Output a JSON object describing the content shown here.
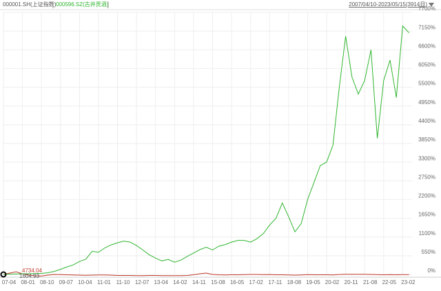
{
  "chart_data": {
    "type": "line",
    "date_range": "2007/04/10-2023/05/15(3914日)",
    "annotations": [
      "4734.04",
      "1604.93"
    ],
    "x": [
      2007.25,
      2007.5,
      2007.75,
      2008,
      2008.25,
      2008.5,
      2008.75,
      2009,
      2009.25,
      2009.5,
      2009.75,
      2010,
      2010.25,
      2010.5,
      2010.75,
      2011,
      2011.25,
      2011.5,
      2011.75,
      2012,
      2012.25,
      2012.5,
      2012.75,
      2013,
      2013.25,
      2013.5,
      2013.75,
      2014,
      2014.25,
      2014.5,
      2014.75,
      2015,
      2015.25,
      2015.5,
      2015.75,
      2016,
      2016.25,
      2016.5,
      2016.75,
      2017,
      2017.25,
      2017.5,
      2017.75,
      2018,
      2018.25,
      2018.5,
      2018.75,
      2019,
      2019.25,
      2019.5,
      2019.75,
      2020,
      2020.25,
      2020.5,
      2020.75,
      2021,
      2021.25,
      2021.5,
      2021.75,
      2022,
      2022.25,
      2022.5,
      2022.75,
      2023,
      2023.25
    ],
    "xlim": [
      2007.25,
      2023.37
    ],
    "xticks": [
      {
        "value": 2007.25,
        "label": "07-04"
      },
      {
        "value": 2008,
        "label": "08-01"
      },
      {
        "value": 2008.75,
        "label": "08-10"
      },
      {
        "value": 2009.5,
        "label": "09-07"
      },
      {
        "value": 2010.25,
        "label": "10-04"
      },
      {
        "value": 2011,
        "label": "11-01"
      },
      {
        "value": 2011.75,
        "label": "11-10"
      },
      {
        "value": 2012.5,
        "label": "12-07"
      },
      {
        "value": 2013.25,
        "label": "13-04"
      },
      {
        "value": 2014,
        "label": "14-02"
      },
      {
        "value": 2014.75,
        "label": "14-11"
      },
      {
        "value": 2015.5,
        "label": "15-08"
      },
      {
        "value": 2016.25,
        "label": "16-05"
      },
      {
        "value": 2017,
        "label": "17-02"
      },
      {
        "value": 2017.75,
        "label": "17-11"
      },
      {
        "value": 2018.5,
        "label": "18-08"
      },
      {
        "value": 2019.25,
        "label": "19-05"
      },
      {
        "value": 2020,
        "label": "20-02"
      },
      {
        "value": 2020.75,
        "label": "20-11"
      },
      {
        "value": 2021.5,
        "label": "21-08"
      },
      {
        "value": 2022.25,
        "label": "22-05"
      },
      {
        "value": 2023,
        "label": "23-02"
      }
    ],
    "ylim": [
      0,
      7700
    ],
    "yticks": [
      {
        "value": 0,
        "label": "0%"
      },
      {
        "value": 550,
        "label": "550%"
      },
      {
        "value": 1100,
        "label": "1100%"
      },
      {
        "value": 1650,
        "label": "1650%"
      },
      {
        "value": 2200,
        "label": "2200%"
      },
      {
        "value": 2750,
        "label": "2750%"
      },
      {
        "value": 3300,
        "label": "3300%"
      },
      {
        "value": 3850,
        "label": "3850%"
      },
      {
        "value": 4400,
        "label": "4400%"
      },
      {
        "value": 4950,
        "label": "4950%"
      },
      {
        "value": 5500,
        "label": "5500%"
      },
      {
        "value": 6050,
        "label": "6050%"
      },
      {
        "value": 6600,
        "label": "6600%"
      },
      {
        "value": 7150,
        "label": "7150%"
      },
      {
        "value": 7700,
        "label": "7700%"
      }
    ],
    "grid": true,
    "series": [
      {
        "name": "000001.SH(上证指数)",
        "color": "#c0392b",
        "values": [
          0,
          40,
          80,
          20,
          -20,
          -40,
          -45,
          -20,
          0,
          -5,
          -10,
          -15,
          -20,
          -25,
          -20,
          -15,
          -15,
          -20,
          -30,
          -30,
          -30,
          -35,
          -35,
          -30,
          -30,
          -35,
          -35,
          -35,
          -35,
          -30,
          -10,
          20,
          40,
          0,
          -10,
          -15,
          -10,
          -10,
          -5,
          0,
          0,
          -5,
          -3,
          -10,
          -10,
          -15,
          -20,
          -15,
          -5,
          -10,
          -10,
          -10,
          -15,
          0,
          5,
          5,
          5,
          5,
          0,
          -5,
          -10,
          -5,
          -10,
          -5,
          -5
        ]
      },
      {
        "name": "000596.SZ(古井贡酒)",
        "color": "#2fb52f",
        "values": [
          0,
          10,
          15,
          20,
          20,
          25,
          30,
          50,
          90,
          150,
          220,
          280,
          380,
          450,
          680,
          650,
          780,
          870,
          930,
          980,
          950,
          850,
          720,
          580,
          480,
          400,
          440,
          360,
          420,
          530,
          630,
          730,
          800,
          720,
          830,
          880,
          950,
          1000,
          1000,
          950,
          1050,
          1200,
          1450,
          1650,
          2100,
          1700,
          1250,
          1500,
          2200,
          2700,
          3200,
          3300,
          3800,
          5500,
          7000,
          5800,
          5300,
          5700,
          6600,
          4000,
          5700,
          6300,
          5200,
          7300,
          7100
        ]
      }
    ]
  }
}
